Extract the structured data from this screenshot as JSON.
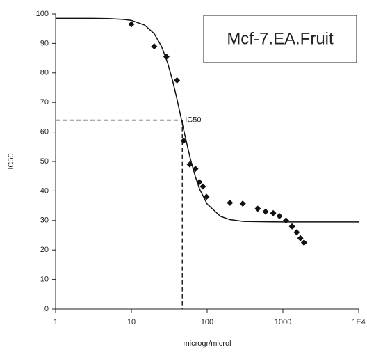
{
  "chart_data": {
    "type": "scatter",
    "title": "Mcf-7.EA.Fruit",
    "x_label": "microgr/microl",
    "y_label": "IC50",
    "x_scale": "log",
    "color": "#111111",
    "x": [
      10,
      20,
      29,
      40,
      49,
      59,
      70,
      79,
      88,
      98,
      200,
      295,
      466,
      590,
      745,
      900,
      1100,
      1320,
      1520,
      1700,
      1900
    ],
    "values": [
      96.5,
      89,
      85.5,
      77.5,
      57,
      49,
      47.5,
      43,
      41.5,
      38,
      36,
      35.7,
      34,
      33,
      32.5,
      31.5,
      30,
      28,
      26,
      24,
      22.5
    ],
    "curve": {
      "x": [
        1,
        3,
        5,
        8,
        10,
        15,
        20,
        25,
        30,
        35,
        40,
        45,
        50,
        60,
        70,
        80,
        100,
        150,
        200,
        300,
        500,
        1000,
        10000
      ],
      "values": [
        98.5,
        98.5,
        98.4,
        98.1,
        97.8,
        96.2,
        93.3,
        89.0,
        83.5,
        77.4,
        71.1,
        65.1,
        59.7,
        50.9,
        44.8,
        40.5,
        35.6,
        31.4,
        30.3,
        29.7,
        29.6,
        29.5,
        29.5
      ]
    },
    "annotation": {
      "text": "IC50",
      "x": 47,
      "y": 64
    },
    "xlim": [
      1,
      10000
    ],
    "xticks": [
      1,
      10,
      100,
      1000,
      {
        "value": 10000,
        "label": "1E4"
      }
    ],
    "ylim": [
      0,
      100
    ],
    "yticks": [
      0,
      10,
      20,
      30,
      40,
      50,
      60,
      70,
      80,
      90,
      100
    ]
  }
}
